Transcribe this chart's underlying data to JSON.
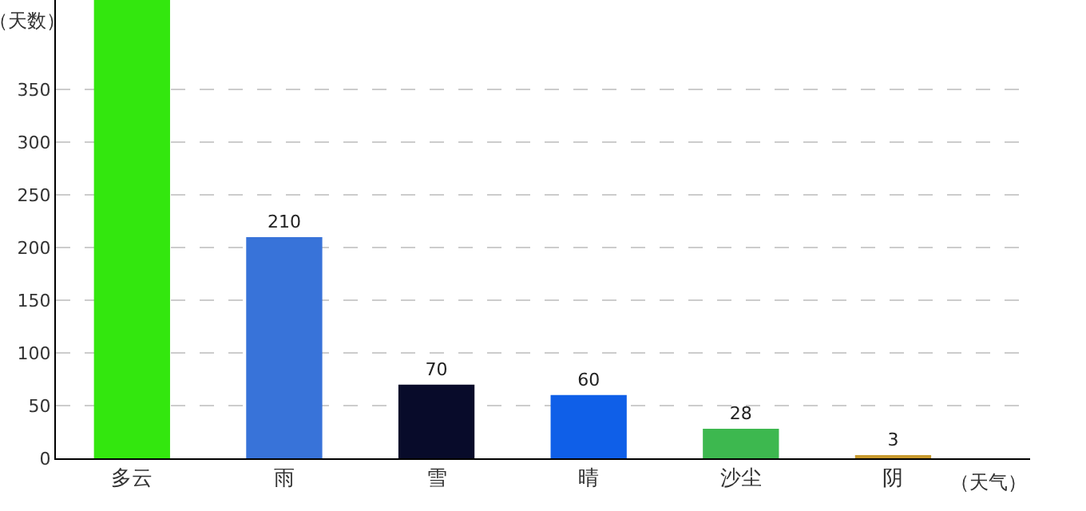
{
  "chart_data": {
    "type": "bar",
    "xlabel": "（天气）",
    "ylabel": "（天数）",
    "categories": [
      "多云",
      "雨",
      "雪",
      "晴",
      "沙尘",
      "阴"
    ],
    "values": [
      435,
      210,
      70,
      60,
      28,
      3
    ],
    "value_labels": [
      null,
      "210",
      "70",
      "60",
      "28",
      "3"
    ],
    "colors": [
      "#33e70e",
      "#3873d9",
      "#080b2a",
      "#0f5fe8",
      "#3db84f",
      "#c89a2e"
    ],
    "ylim": [
      0,
      435
    ],
    "yticks": [
      0,
      50,
      100,
      150,
      200,
      250,
      300,
      350
    ],
    "grid": "y",
    "legend": false
  }
}
